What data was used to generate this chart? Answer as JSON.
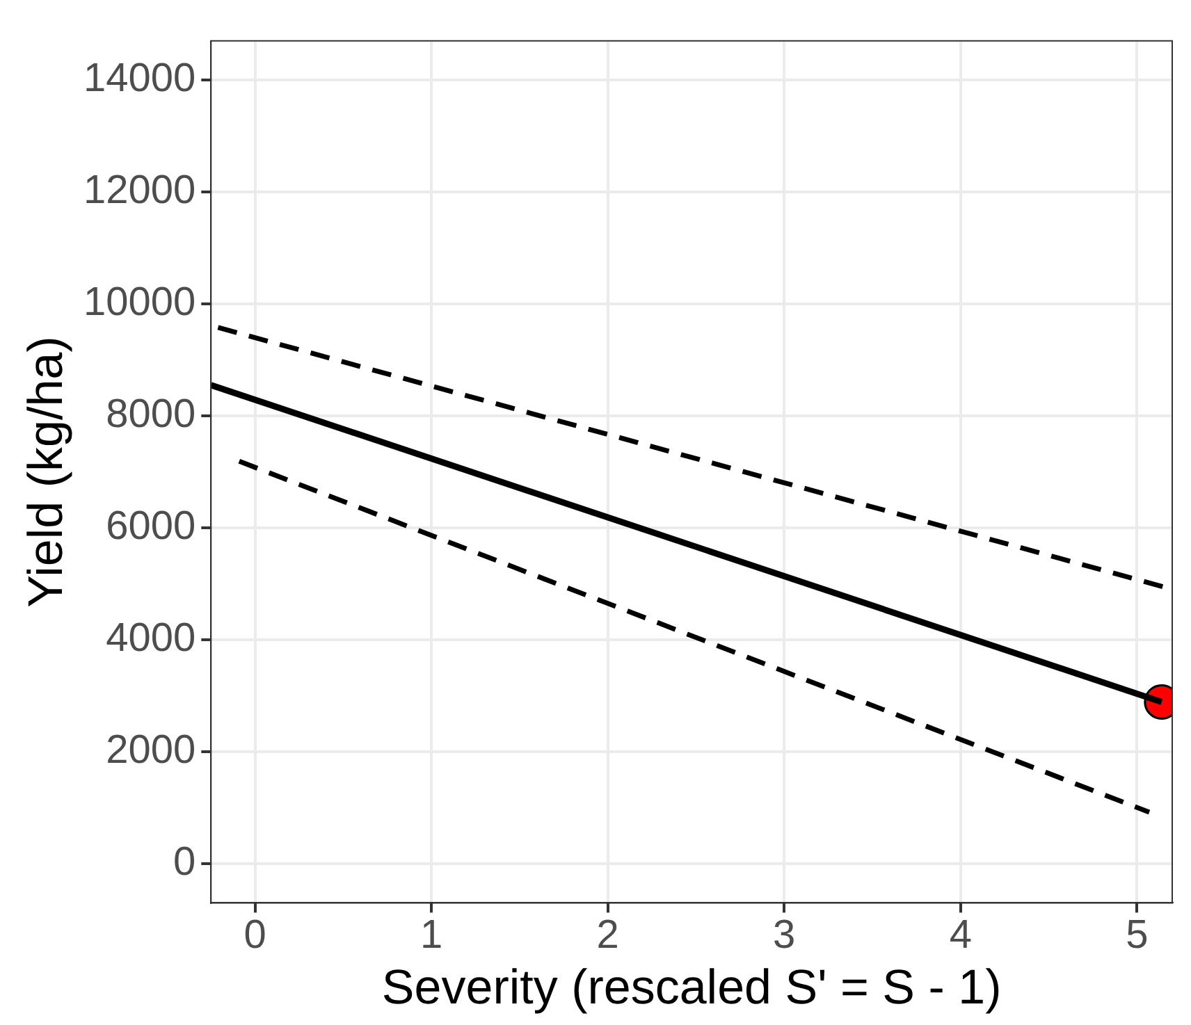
{
  "chart_data": {
    "type": "line",
    "xlabel": "Severity (rescaled S' = S - 1)",
    "ylabel": "Yield (kg/ha)",
    "xlim": [
      -0.25,
      5.2
    ],
    "ylim": [
      -700,
      14700
    ],
    "xticks": [
      0,
      1,
      2,
      3,
      4,
      5
    ],
    "yticks": [
      0,
      2000,
      4000,
      6000,
      8000,
      10000,
      12000,
      14000
    ],
    "grid": true,
    "legend": false,
    "series": [
      {
        "color": "#000000",
        "line_style": "solid",
        "x": [
          -0.25,
          5.14
        ],
        "values": [
          8550,
          2890
        ]
      },
      {
        "color": "#000000",
        "line_style": "dashed",
        "x": [
          -0.21,
          5.17
        ],
        "values": [
          9580,
          4930
        ]
      },
      {
        "color": "#000000",
        "line_style": "dashed",
        "x": [
          -0.09,
          5.07
        ],
        "values": [
          7190,
          920
        ]
      },
      {
        "type": "scatter",
        "color": "#ff0000",
        "marker": "circle",
        "x": [
          5.14
        ],
        "values": [
          2890
        ]
      }
    ]
  }
}
